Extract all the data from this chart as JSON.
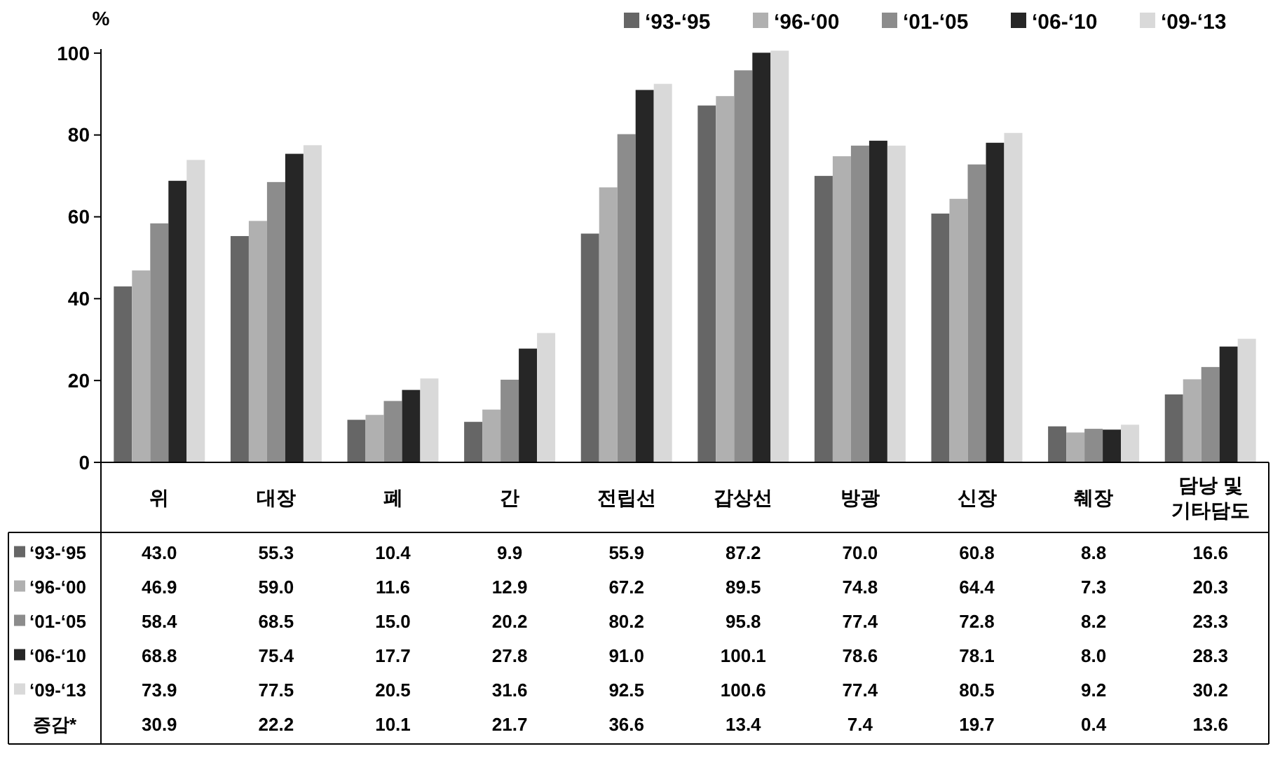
{
  "chart_data": {
    "type": "bar",
    "ylabel": "%",
    "categories": [
      "위",
      "대장",
      "폐",
      "간",
      "전립선",
      "갑상선",
      "방광",
      "신장",
      "췌장",
      "담낭 및\n기타담도"
    ],
    "series": [
      {
        "name": "‘93-‘95",
        "color": "#666666",
        "values": [
          43.0,
          55.3,
          10.4,
          9.9,
          55.9,
          87.2,
          70.0,
          60.8,
          8.8,
          16.6
        ],
        "value_labels": [
          "43.0",
          "55.3",
          "10.4",
          "9.9",
          "55.9",
          "87.2",
          "70.0",
          "60.8",
          "8.8",
          "16.6"
        ]
      },
      {
        "name": "‘96-‘00",
        "color": "#b0b0b0",
        "values": [
          46.9,
          59.0,
          11.6,
          12.9,
          67.2,
          89.5,
          74.8,
          64.4,
          7.3,
          20.3
        ],
        "value_labels": [
          "46.9",
          "59.0",
          "11.6",
          "12.9",
          "67.2",
          "89.5",
          "74.8",
          "64.4",
          "7.3",
          "20.3"
        ]
      },
      {
        "name": "‘01-‘05",
        "color": "#8c8c8c",
        "values": [
          58.4,
          68.5,
          15.0,
          20.2,
          80.2,
          95.8,
          77.4,
          72.8,
          8.2,
          23.3
        ],
        "value_labels": [
          "58.4",
          "68.5",
          "15.0",
          "20.2",
          "80.2",
          "95.8",
          "77.4",
          "72.8",
          "8.2",
          "23.3"
        ]
      },
      {
        "name": "‘06-‘10",
        "color": "#262626",
        "values": [
          68.8,
          75.4,
          17.7,
          27.8,
          91.0,
          100.1,
          78.6,
          78.1,
          8.0,
          28.3
        ],
        "value_labels": [
          "68.8",
          "75.4",
          "17.7",
          "27.8",
          "91.0",
          "100.1",
          "78.6",
          "78.1",
          "8.0",
          "28.3"
        ]
      },
      {
        "name": "‘09-‘13",
        "color": "#d9d9d9",
        "values": [
          73.9,
          77.5,
          20.5,
          31.6,
          92.5,
          100.6,
          77.4,
          80.5,
          9.2,
          30.2
        ],
        "value_labels": [
          "73.9",
          "77.5",
          "20.5",
          "31.6",
          "92.5",
          "100.6",
          "77.4",
          "80.5",
          "9.2",
          "30.2"
        ]
      }
    ],
    "ylim": [
      0,
      101
    ],
    "yticks": [
      0,
      20,
      40,
      60,
      80,
      100
    ],
    "grid": false,
    "legend": "top right",
    "annotations": [
      "증감*",
      "30.9",
      "22.2",
      "10.1",
      "21.7",
      "36.6",
      "13.4",
      "7.4",
      "19.7",
      "0.4",
      "13.6"
    ]
  }
}
